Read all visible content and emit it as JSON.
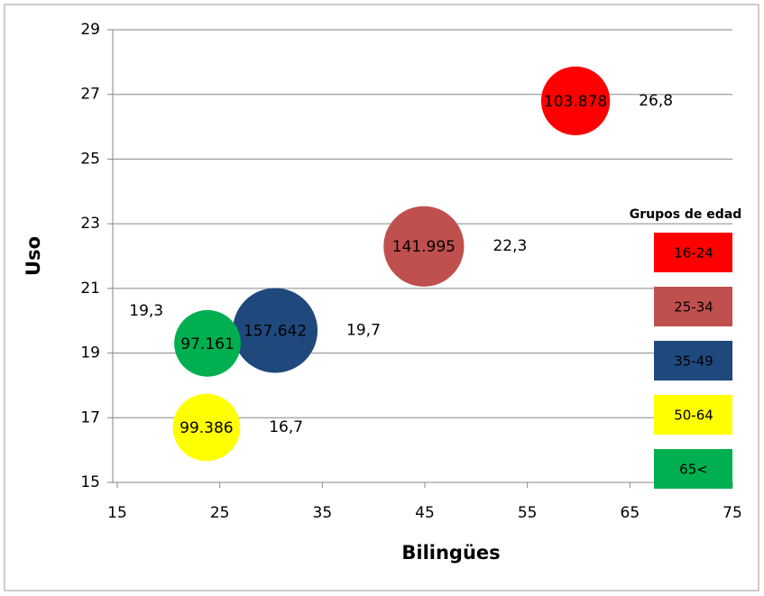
{
  "chart_data": {
    "type": "bubble",
    "xlabel": "Bilingües",
    "ylabel": "Uso",
    "legend_title": "Grupos de edad",
    "legend": "right",
    "grid": true,
    "xlim": [
      15,
      75
    ],
    "xticks": [
      15,
      25,
      35,
      45,
      55,
      65,
      75
    ],
    "ylim": [
      15,
      29
    ],
    "yticks": [
      15,
      17,
      19,
      21,
      23,
      25,
      27,
      29
    ],
    "series": [
      {
        "name": "16-24",
        "color": "#ff0000",
        "x": [
          59.7
        ],
        "values": [
          26.8
        ],
        "value_labels": [
          "26,8"
        ],
        "sizes": [
          103878
        ],
        "size_labels": [
          "103.878"
        ]
      },
      {
        "name": "25-34",
        "color": "#c0504d",
        "x": [
          44.9
        ],
        "values": [
          22.3
        ],
        "value_labels": [
          "22,3"
        ],
        "sizes": [
          141995
        ],
        "size_labels": [
          "141.995"
        ]
      },
      {
        "name": "35-49",
        "color": "#1f497d",
        "x": [
          30.4
        ],
        "values": [
          19.7
        ],
        "value_labels": [
          "19,7"
        ],
        "sizes": [
          157642
        ],
        "size_labels": [
          "157.642"
        ]
      },
      {
        "name": "50-64",
        "color": "#ffff00",
        "x": [
          23.7
        ],
        "values": [
          16.7
        ],
        "value_labels": [
          "16,7"
        ],
        "sizes": [
          99386
        ],
        "size_labels": [
          "99.386"
        ]
      },
      {
        "name": "65<",
        "color": "#00b050",
        "x": [
          23.8
        ],
        "values": [
          19.3
        ],
        "value_labels": [
          "19,3"
        ],
        "sizes": [
          97161
        ],
        "size_labels": [
          "97.161"
        ]
      }
    ]
  }
}
